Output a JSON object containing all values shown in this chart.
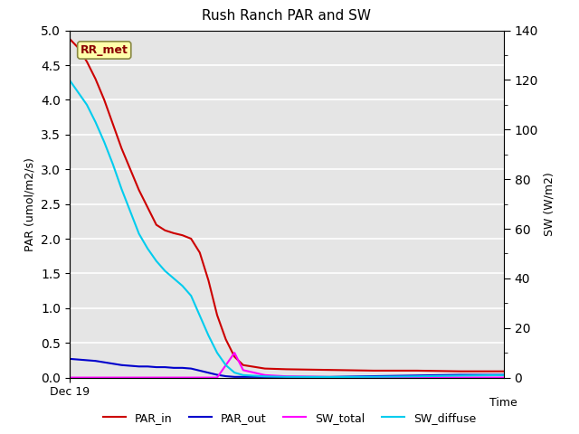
{
  "title": "Rush Ranch PAR and SW",
  "xlabel": "Time",
  "ylabel_left": "PAR (umol/m2/s)",
  "ylabel_right": "SW (W/m2)",
  "ylim_left": [
    0,
    5.0
  ],
  "ylim_right": [
    0,
    140
  ],
  "yticks_left": [
    0.0,
    0.5,
    1.0,
    1.5,
    2.0,
    2.5,
    3.0,
    3.5,
    4.0,
    4.5,
    5.0
  ],
  "yticks_right_major": [
    0,
    20,
    40,
    60,
    80,
    100,
    120,
    140
  ],
  "yticks_right_minor": [
    10,
    30,
    50,
    70,
    90,
    110,
    130
  ],
  "x_label_tick": "Dec 19",
  "dataset_label": "RR_met",
  "background_color": "#e5e5e5",
  "lines": {
    "PAR_in": {
      "color": "#cc0000",
      "label": "PAR_in",
      "x": [
        0,
        2,
        4,
        6,
        8,
        10,
        12,
        14,
        16,
        18,
        20,
        22,
        24,
        26,
        28,
        30,
        32,
        34,
        36,
        38,
        40,
        45,
        50,
        60,
        70,
        80,
        90,
        100
      ],
      "y": [
        4.88,
        4.75,
        4.55,
        4.3,
        4.0,
        3.65,
        3.3,
        3.0,
        2.7,
        2.45,
        2.2,
        2.12,
        2.08,
        2.05,
        2.0,
        1.8,
        1.4,
        0.9,
        0.55,
        0.3,
        0.18,
        0.13,
        0.12,
        0.11,
        0.1,
        0.1,
        0.09,
        0.09
      ]
    },
    "PAR_out": {
      "color": "#0000cc",
      "label": "PAR_out",
      "x": [
        0,
        2,
        4,
        6,
        8,
        10,
        12,
        14,
        16,
        18,
        20,
        22,
        24,
        26,
        28,
        30,
        32,
        34,
        36,
        38,
        40,
        45,
        50,
        60,
        70,
        80,
        90,
        100
      ],
      "y": [
        0.27,
        0.26,
        0.25,
        0.24,
        0.22,
        0.2,
        0.18,
        0.17,
        0.16,
        0.16,
        0.15,
        0.15,
        0.14,
        0.14,
        0.13,
        0.1,
        0.07,
        0.04,
        0.02,
        0.01,
        0.01,
        0.01,
        0.01,
        0.01,
        0.02,
        0.03,
        0.04,
        0.04
      ]
    },
    "SW_total": {
      "color": "#ff00ff",
      "label": "SW_total",
      "x": [
        0,
        28,
        30,
        32,
        34,
        36,
        38,
        40,
        45,
        50,
        60,
        70,
        80,
        90,
        100
      ],
      "y_right": [
        0,
        0,
        0,
        0,
        0,
        5,
        10,
        3,
        1,
        0.5,
        0.2,
        0.1,
        0.05,
        0.02,
        0.01
      ]
    },
    "SW_diffuse": {
      "color": "#00ccee",
      "label": "SW_diffuse",
      "x": [
        0,
        2,
        4,
        6,
        8,
        10,
        12,
        14,
        16,
        18,
        20,
        22,
        24,
        26,
        28,
        30,
        32,
        34,
        36,
        38,
        40,
        45,
        50,
        60,
        70,
        80,
        90,
        100
      ],
      "y_right": [
        120,
        115,
        110,
        103,
        95,
        86,
        76,
        67,
        58,
        52,
        47,
        43,
        40,
        37,
        33,
        25,
        17,
        10,
        5,
        2,
        1,
        0.5,
        0.3,
        0.2,
        0.3,
        0.5,
        0.8,
        1.0
      ]
    }
  }
}
